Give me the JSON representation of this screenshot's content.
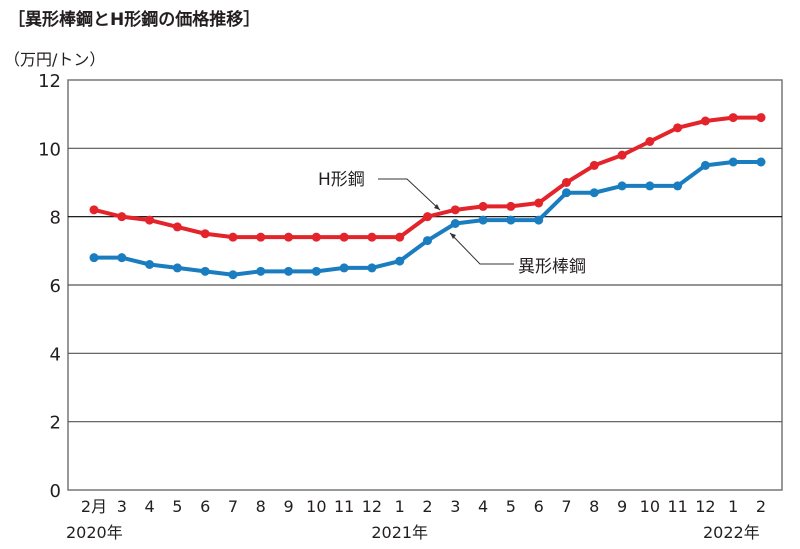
{
  "chart_data": {
    "type": "line",
    "title": "［異形棒鋼とH形鋼の価格推移］",
    "ylabel": "（万円/トン）",
    "ylim": [
      0,
      12
    ],
    "yticks": [
      0,
      2,
      4,
      6,
      8,
      10,
      12
    ],
    "grid": true,
    "categories": [
      "2月",
      "3",
      "4",
      "5",
      "6",
      "7",
      "8",
      "9",
      "10",
      "11",
      "12",
      "1",
      "2",
      "3",
      "4",
      "5",
      "6",
      "7",
      "8",
      "9",
      "10",
      "11",
      "12",
      "1",
      "2"
    ],
    "year_labels": [
      {
        "index": 0,
        "label": "2020年"
      },
      {
        "index": 11,
        "label": "2021年"
      },
      {
        "index": 23,
        "label": "2022年"
      }
    ],
    "series": [
      {
        "name": "H形鋼",
        "color": "#e3242b",
        "values": [
          8.2,
          8.0,
          7.9,
          7.7,
          7.5,
          7.4,
          7.4,
          7.4,
          7.4,
          7.4,
          7.4,
          7.4,
          8.0,
          8.2,
          8.3,
          8.3,
          8.4,
          9.0,
          9.5,
          9.8,
          10.2,
          10.6,
          10.8,
          10.9,
          10.9
        ]
      },
      {
        "name": "異形棒鋼",
        "color": "#1a7dc0",
        "values": [
          6.8,
          6.8,
          6.6,
          6.5,
          6.4,
          6.3,
          6.4,
          6.4,
          6.4,
          6.5,
          6.5,
          6.7,
          7.3,
          7.8,
          7.9,
          7.9,
          7.9,
          8.7,
          8.7,
          8.9,
          8.9,
          8.9,
          9.5,
          9.6,
          9.6
        ]
      }
    ]
  }
}
